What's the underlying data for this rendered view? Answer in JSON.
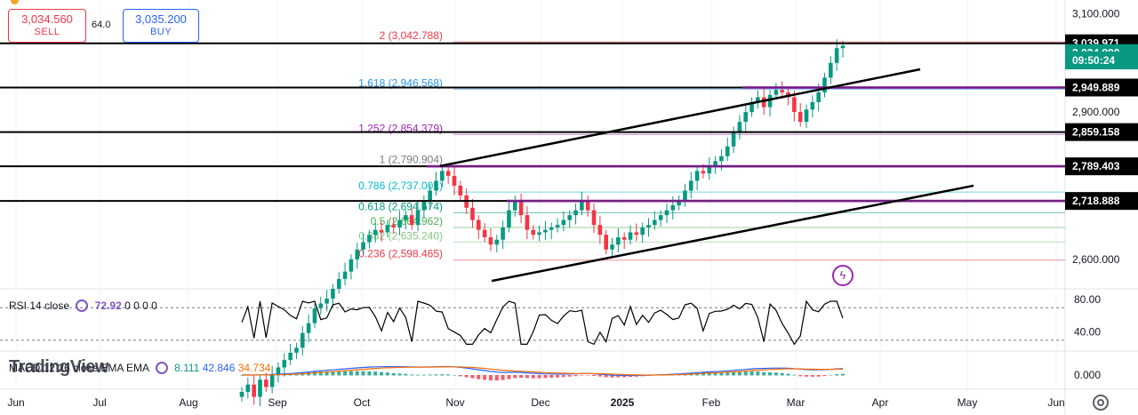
{
  "ticket": {
    "sell_price": "3,034.560",
    "sell_label": "SELL",
    "spread": "64.0",
    "buy_price": "3,035.200",
    "buy_label": "BUY"
  },
  "price_axis": {
    "ticks": [
      "3,100.000",
      "2,900.000",
      "2,600.000"
    ],
    "rsi_ticks": [
      "80.00",
      "40.00"
    ],
    "macd_ticks": [
      "0.000"
    ],
    "tags": [
      {
        "text": "3,039.971",
        "color": "#000000"
      },
      {
        "text": "3,034.890",
        "color": "#089981"
      },
      {
        "text": "09:50:24",
        "color": "#089981"
      },
      {
        "text": "2,949.889",
        "color": "#000000"
      },
      {
        "text": "2,859.158",
        "color": "#000000"
      },
      {
        "text": "2,789.403",
        "color": "#000000"
      },
      {
        "text": "2,718.888",
        "color": "#000000"
      }
    ]
  },
  "time_axis": [
    "Jun",
    "Jul",
    "Aug",
    "Sep",
    "Oct",
    "Nov",
    "Dec",
    "2025",
    "Feb",
    "Mar",
    "Apr",
    "May",
    "Jun"
  ],
  "fib_levels": [
    {
      "label": "2 (3,042.788)",
      "color": "#f23645",
      "value": 3042.788
    },
    {
      "label": "1.618 (2,946.568)",
      "color": "#2196f3",
      "value": 2946.568
    },
    {
      "label": "1.252 (2,854.379)",
      "color": "#9c27b0",
      "value": 2854.379
    },
    {
      "label": "1 (2,790.904)",
      "color": "#787b86",
      "value": 2790.904
    },
    {
      "label": "0.786 (2,737.001)",
      "color": "#00bcd4",
      "value": 2737.001
    },
    {
      "label": "0.618 (2,694.674)",
      "color": "#089981",
      "value": 2694.674
    },
    {
      "label": "0.5 (2,664.962)",
      "color": "#4caf50",
      "value": 2664.962
    },
    {
      "label": "0.382 (2,635.240)",
      "color": "#81c784",
      "value": 2635.24
    },
    {
      "label": "0.236 (2,598.465)",
      "color": "#f23645",
      "value": 2598.465
    }
  ],
  "indicators": {
    "rsi_label": "RSI 14 close",
    "rsi_value": "72.92",
    "rsi_extra": "0 0 0 0",
    "macd_label": "MACD 12 26 close EMA EMA",
    "macd_hist": "8.111",
    "macd_line": "42.846",
    "macd_signal": "34.734",
    "macd_colors": {
      "hist": "#089981",
      "line": "#2962ff",
      "signal": "#ff6d00"
    }
  },
  "watermark": "TradingView",
  "colors": {
    "up": "#089981",
    "down": "#f23645",
    "horizontal": "#9c27b0"
  },
  "chart_data": {
    "type": "candlestick",
    "title": "",
    "price_range": [
      2540,
      3110
    ],
    "series": [
      {
        "name": "rsi",
        "range": [
          20,
          90
        ],
        "levels": [
          70,
          30
        ]
      },
      {
        "name": "macd"
      }
    ],
    "closes": [
      2330,
      2345,
      2320,
      2355,
      2340,
      2365,
      2380,
      2395,
      2410,
      2420,
      2450,
      2470,
      2500,
      2510,
      2520,
      2540,
      2560,
      2575,
      2600,
      2620,
      2635,
      2650,
      2660,
      2655,
      2670,
      2665,
      2680,
      2690,
      2670,
      2700,
      2720,
      2740,
      2760,
      2780,
      2770,
      2750,
      2730,
      2705,
      2680,
      2660,
      2645,
      2630,
      2640,
      2665,
      2700,
      2720,
      2690,
      2660,
      2650,
      2655,
      2660,
      2665,
      2670,
      2680,
      2690,
      2700,
      2720,
      2700,
      2670,
      2650,
      2620,
      2630,
      2645,
      2640,
      2655,
      2650,
      2665,
      2670,
      2680,
      2690,
      2700,
      2710,
      2720,
      2740,
      2760,
      2780,
      2775,
      2790,
      2800,
      2810,
      2830,
      2860,
      2880,
      2900,
      2920,
      2930,
      2910,
      2935,
      2945,
      2940,
      2930,
      2900,
      2880,
      2905,
      2920,
      2940,
      2970,
      3000,
      3030,
      3035
    ]
  }
}
